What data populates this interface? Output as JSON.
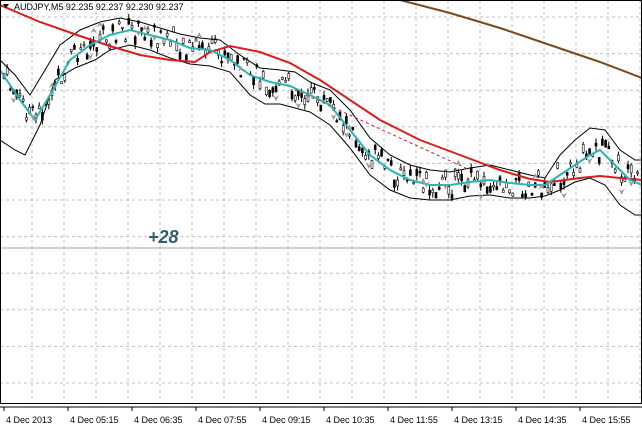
{
  "header": {
    "symbol_info": "AUDJPY,M5  92.235 92.237 92.230 92.237"
  },
  "annotation": "+28",
  "time_axis": {
    "labels": [
      "4 Dec 2013",
      "4 Dec 05:15",
      "4 Dec 06:35",
      "4 Dec 07:55",
      "4 Dec 09:15",
      "4 Dec 10:35",
      "4 Dec 11:55",
      "4 Dec 13:15",
      "4 Dec 14:35",
      "4 Dec 15:55"
    ]
  }
}
